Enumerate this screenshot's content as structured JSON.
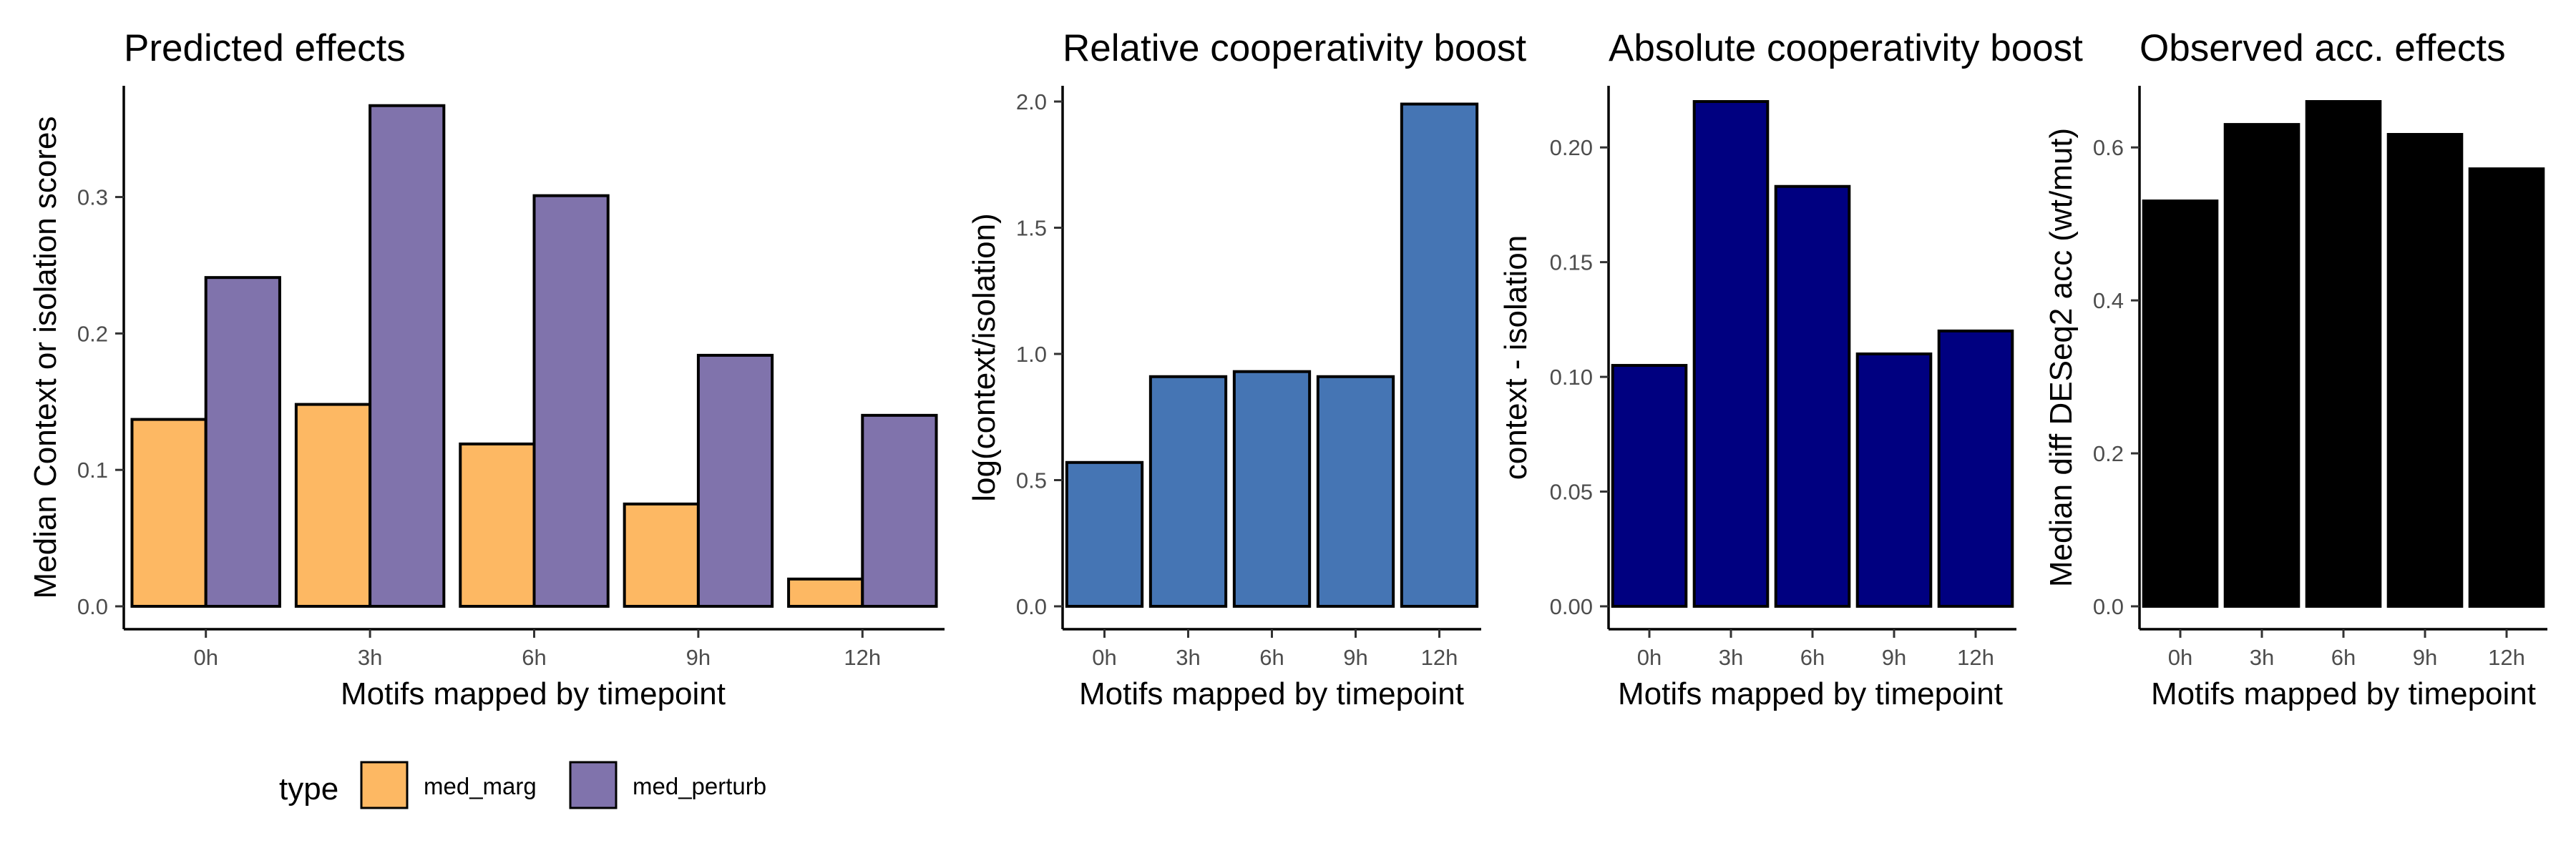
{
  "chart_data": [
    {
      "type": "bar",
      "title": "Predicted effects",
      "xlabel": "Motifs mapped by timepoint",
      "ylabel": "Median Context or isolation scores",
      "categories": [
        "0h",
        "3h",
        "6h",
        "9h",
        "12h"
      ],
      "ylim": [
        0,
        0.37
      ],
      "yticks": [
        "0.0",
        "0.1",
        "0.2",
        "0.3"
      ],
      "grid": false,
      "series": [
        {
          "name": "med_marg",
          "color": "#fdb863",
          "values": [
            0.137,
            0.148,
            0.119,
            0.075,
            0.02
          ]
        },
        {
          "name": "med_perturb",
          "color": "#8073ac",
          "values": [
            0.241,
            0.367,
            0.301,
            0.184,
            0.14
          ]
        }
      ],
      "legend": {
        "title": "type",
        "position": "bottom"
      }
    },
    {
      "type": "bar",
      "title": "Relative cooperativity boost",
      "xlabel": "Motifs mapped by timepoint",
      "ylabel": "log(context/isolation)",
      "categories": [
        "0h",
        "3h",
        "6h",
        "9h",
        "12h"
      ],
      "ylim": [
        0,
        2.0
      ],
      "yticks": [
        "0.0",
        "0.5",
        "1.0",
        "1.5",
        "2.0"
      ],
      "grid": false,
      "color": "#4575b4",
      "values": [
        0.57,
        0.91,
        0.93,
        0.91,
        1.99
      ]
    },
    {
      "type": "bar",
      "title": "Absolute cooperativity boost",
      "xlabel": "Motifs mapped by timepoint",
      "ylabel": "context - isolation",
      "categories": [
        "0h",
        "3h",
        "6h",
        "9h",
        "12h"
      ],
      "ylim": [
        0,
        0.22
      ],
      "yticks": [
        "0.00",
        "0.05",
        "0.10",
        "0.15",
        "0.20"
      ],
      "grid": false,
      "color": "#000080",
      "values": [
        0.105,
        0.22,
        0.183,
        0.11,
        0.12
      ]
    },
    {
      "type": "bar",
      "title": "Observed acc. effects",
      "xlabel": "Motifs mapped by timepoint",
      "ylabel": "Median diff DESeq2 acc (wt/mut)",
      "categories": [
        "0h",
        "3h",
        "6h",
        "9h",
        "12h"
      ],
      "ylim": [
        0,
        0.66
      ],
      "yticks": [
        "0.0",
        "0.2",
        "0.4",
        "0.6"
      ],
      "grid": false,
      "color": "#000000",
      "values": [
        0.53,
        0.63,
        0.66,
        0.617,
        0.572
      ]
    }
  ]
}
